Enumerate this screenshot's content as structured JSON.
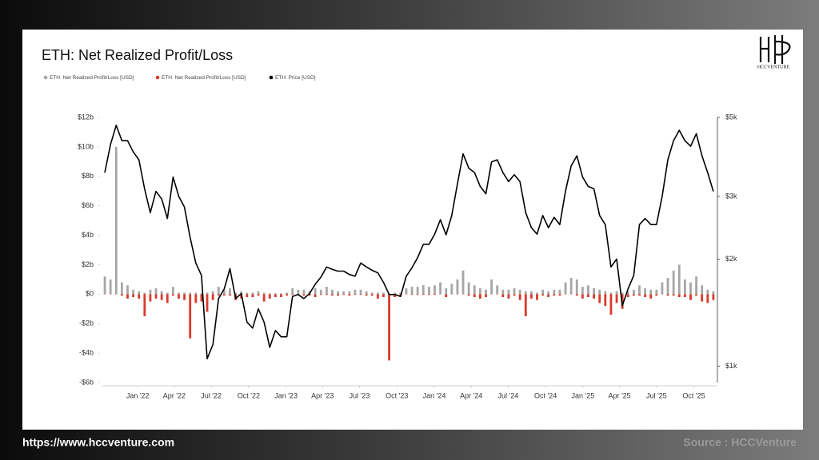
{
  "page": {
    "logo": "HCCVENTURE",
    "url": "https://www.hccventure.com",
    "source": "Source : HCCVenture"
  },
  "chart_data": {
    "type": "bar",
    "title": "ETH: Net Realized Profit/Loss",
    "x": [
      "2021-10-12",
      "2021-10-26",
      "2021-11-09",
      "2021-11-23",
      "2021-12-07",
      "2021-12-21",
      "2022-01-04",
      "2022-01-18",
      "2022-02-01",
      "2022-02-15",
      "2022-03-01",
      "2022-03-15",
      "2022-03-29",
      "2022-04-12",
      "2022-04-26",
      "2022-05-10",
      "2022-05-24",
      "2022-06-07",
      "2022-06-21",
      "2022-07-05",
      "2022-07-19",
      "2022-08-02",
      "2022-08-16",
      "2022-08-30",
      "2022-09-13",
      "2022-09-27",
      "2022-10-11",
      "2022-10-25",
      "2022-11-08",
      "2022-11-22",
      "2022-12-06",
      "2022-12-20",
      "2023-01-03",
      "2023-01-17",
      "2023-01-31",
      "2023-02-14",
      "2023-02-28",
      "2023-03-14",
      "2023-03-28",
      "2023-04-11",
      "2023-04-25",
      "2023-05-09",
      "2023-05-23",
      "2023-06-06",
      "2023-06-20",
      "2023-07-04",
      "2023-07-18",
      "2023-08-01",
      "2023-08-15",
      "2023-08-29",
      "2023-09-12",
      "2023-09-26",
      "2023-10-10",
      "2023-10-24",
      "2023-11-07",
      "2023-11-21",
      "2023-12-05",
      "2023-12-19",
      "2024-01-02",
      "2024-01-16",
      "2024-01-30",
      "2024-02-13",
      "2024-02-27",
      "2024-03-12",
      "2024-03-26",
      "2024-04-09",
      "2024-04-23",
      "2024-05-07",
      "2024-05-21",
      "2024-06-04",
      "2024-06-18",
      "2024-07-02",
      "2024-07-16",
      "2024-07-30",
      "2024-08-13",
      "2024-08-27",
      "2024-09-10",
      "2024-09-24",
      "2024-10-08",
      "2024-10-22",
      "2024-11-05",
      "2024-11-19",
      "2024-12-03",
      "2024-12-17",
      "2024-12-31",
      "2025-01-14",
      "2025-01-28",
      "2025-02-11",
      "2025-02-25",
      "2025-03-11",
      "2025-03-25",
      "2025-04-08",
      "2025-04-22",
      "2025-05-06",
      "2025-05-20",
      "2025-06-03",
      "2025-06-17",
      "2025-07-01",
      "2025-07-15",
      "2025-07-29",
      "2025-08-12",
      "2025-08-26",
      "2025-09-09",
      "2025-09-23",
      "2025-10-07",
      "2025-10-21",
      "2025-11-04",
      "2025-11-18"
    ],
    "series": [
      {
        "name": "ETH: Net Realized Profit/Loss [USD]",
        "color": "#a6a6a6",
        "type": "bar",
        "values": [
          1.2,
          1.0,
          10.0,
          0.8,
          0.6,
          0.3,
          0.2,
          0.1,
          0.3,
          0.4,
          0.2,
          0.1,
          0.5,
          0.1,
          0.1,
          0.1,
          0.1,
          0.05,
          0.1,
          0.2,
          0.5,
          0.3,
          0.4,
          0.1,
          0.2,
          0.1,
          0.1,
          0.2,
          0.1,
          0.05,
          0.05,
          0.05,
          0.1,
          0.4,
          0.3,
          0.3,
          0.2,
          0.4,
          0.3,
          0.5,
          0.3,
          0.2,
          0.2,
          0.2,
          0.3,
          0.3,
          0.2,
          0.1,
          0.1,
          0.1,
          0.05,
          0.1,
          0.1,
          0.4,
          0.5,
          0.5,
          0.6,
          0.5,
          0.6,
          0.8,
          0.4,
          0.7,
          1.0,
          1.6,
          0.8,
          0.6,
          0.4,
          0.3,
          1.0,
          0.6,
          0.3,
          0.3,
          0.4,
          0.3,
          0.2,
          0.2,
          0.1,
          0.3,
          0.2,
          0.3,
          0.3,
          0.8,
          1.1,
          1.0,
          0.5,
          0.6,
          0.4,
          0.3,
          0.2,
          0.1,
          0.2,
          0.1,
          0.2,
          0.3,
          0.6,
          0.4,
          0.3,
          0.3,
          0.8,
          1.1,
          1.6,
          2.0,
          1.0,
          0.8,
          1.2,
          0.6,
          0.3,
          0.2
        ]
      },
      {
        "name": "ETH: Net Realized Profit/Loss [USD]",
        "color": "#d93a2b",
        "type": "bar",
        "values": [
          0,
          0,
          0,
          -0.1,
          -0.3,
          -0.2,
          -0.3,
          -1.5,
          -0.5,
          -0.3,
          -0.4,
          -0.6,
          -0.1,
          -0.3,
          -0.4,
          -3.0,
          -0.6,
          -0.5,
          -1.2,
          -0.4,
          -0.1,
          -0.1,
          -0.1,
          -0.4,
          -0.3,
          -0.2,
          -0.2,
          -0.1,
          -0.5,
          -0.3,
          -0.2,
          -0.2,
          -0.1,
          -0.05,
          -0.05,
          -0.1,
          -0.1,
          -0.2,
          -0.05,
          -0.05,
          -0.1,
          -0.1,
          -0.05,
          -0.1,
          -0.05,
          -0.05,
          -0.1,
          -0.1,
          -0.3,
          -0.2,
          -4.5,
          -0.2,
          -0.1,
          0,
          -0.05,
          -0.05,
          -0.05,
          -0.05,
          -0.05,
          0,
          -0.2,
          0,
          0,
          0,
          -0.1,
          -0.2,
          -0.3,
          -0.2,
          0,
          0,
          -0.2,
          -0.3,
          -0.1,
          -0.4,
          -1.5,
          -0.3,
          -0.4,
          -0.1,
          -0.2,
          -0.1,
          -0.1,
          0,
          0,
          -0.1,
          -0.3,
          -0.2,
          -0.3,
          -0.6,
          -0.8,
          -1.4,
          -0.6,
          -1.0,
          -0.2,
          -0.1,
          -0.1,
          -0.2,
          -0.3,
          -0.1,
          0,
          -0.1,
          -0.1,
          -0.2,
          -0.2,
          -0.4,
          -0.1,
          -0.5,
          -0.6,
          -0.4
        ]
      },
      {
        "name": "ETH: Price [USD]",
        "color": "#000000",
        "type": "line",
        "axis": "y2",
        "values": [
          3500,
          4200,
          4750,
          4300,
          4300,
          4000,
          3800,
          3150,
          2700,
          3100,
          2950,
          2600,
          3400,
          3000,
          2800,
          2300,
          1950,
          1800,
          1050,
          1150,
          1550,
          1650,
          1880,
          1550,
          1600,
          1330,
          1280,
          1450,
          1330,
          1130,
          1260,
          1210,
          1210,
          1570,
          1590,
          1550,
          1600,
          1700,
          1780,
          1900,
          1870,
          1850,
          1850,
          1810,
          1790,
          1950,
          1900,
          1860,
          1830,
          1720,
          1590,
          1590,
          1570,
          1790,
          1890,
          2020,
          2200,
          2200,
          2350,
          2580,
          2340,
          2650,
          3250,
          3950,
          3600,
          3500,
          3200,
          3050,
          3750,
          3800,
          3500,
          3300,
          3450,
          3300,
          2700,
          2450,
          2350,
          2650,
          2450,
          2620,
          2500,
          3100,
          3650,
          3900,
          3400,
          3200,
          3150,
          2650,
          2500,
          1900,
          2000,
          1480,
          1650,
          1800,
          2500,
          2600,
          2500,
          2500,
          3000,
          3800,
          4300,
          4600,
          4300,
          4150,
          4500,
          3900,
          3500,
          3100
        ]
      }
    ],
    "xlim": [
      "2021-10-06",
      "2025-11-28"
    ],
    "xticks": [
      {
        "value": "2022-01-01",
        "label": "Jan '22"
      },
      {
        "value": "2022-04-01",
        "label": "Apr '22"
      },
      {
        "value": "2022-07-01",
        "label": "Jul '22"
      },
      {
        "value": "2022-10-01",
        "label": "Oct '22"
      },
      {
        "value": "2023-01-01",
        "label": "Jan '23"
      },
      {
        "value": "2023-04-01",
        "label": "Apr '23"
      },
      {
        "value": "2023-07-01",
        "label": "Jul '23"
      },
      {
        "value": "2023-10-01",
        "label": "Oct '23"
      },
      {
        "value": "2024-01-01",
        "label": "Jan '24"
      },
      {
        "value": "2024-04-01",
        "label": "Apr '24"
      },
      {
        "value": "2024-07-01",
        "label": "Jul '24"
      },
      {
        "value": "2024-10-01",
        "label": "Oct '24"
      },
      {
        "value": "2025-01-01",
        "label": "Jan '25"
      },
      {
        "value": "2025-04-01",
        "label": "Apr '25"
      },
      {
        "value": "2025-07-01",
        "label": "Jul '25"
      },
      {
        "value": "2025-10-01",
        "label": "Oct '25"
      }
    ],
    "ylim": [
      -6,
      12
    ],
    "yticks": [
      {
        "value": 12,
        "label": "$12b"
      },
      {
        "value": 10,
        "label": "$10b"
      },
      {
        "value": 8,
        "label": "$8b"
      },
      {
        "value": 6,
        "label": "$6b"
      },
      {
        "value": 4,
        "label": "$4b"
      },
      {
        "value": 2,
        "label": "$2b"
      },
      {
        "value": 0,
        "label": "$0"
      },
      {
        "value": -2,
        "label": "-$2b"
      },
      {
        "value": -4,
        "label": "-$4b"
      },
      {
        "value": -6,
        "label": "-$6b"
      }
    ],
    "y2lim": [
      900,
      5000
    ],
    "y2log": true,
    "y2ticks": [
      {
        "value": 5000,
        "label": "$5k"
      },
      {
        "value": 3000,
        "label": "$3k"
      },
      {
        "value": 2000,
        "label": "$2k"
      },
      {
        "value": 1000,
        "label": "$1k"
      }
    ],
    "grid": false
  }
}
